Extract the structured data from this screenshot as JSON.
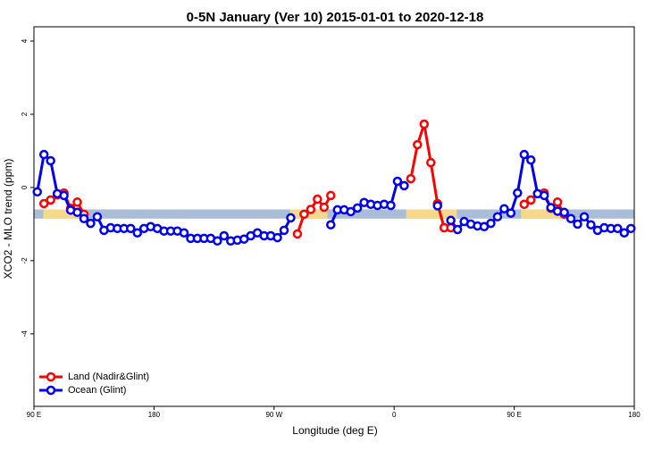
{
  "chart_data": {
    "type": "line",
    "title": "0-5N January (Ver 10)   2015-01-01 to 2020-12-18",
    "x_label": "Longitude (deg E)",
    "y_label": "XCO2 - MLO trend (ppm)",
    "x": [
      92.5,
      97.5,
      102.5,
      107.5,
      112.5,
      117.5,
      122.5,
      127.5,
      132.5,
      137.5,
      142.5,
      147.5,
      152.5,
      157.5,
      162.5,
      167.5,
      172.5,
      177.5,
      182.5,
      187.5,
      192.5,
      197.5,
      202.5,
      207.5,
      212.5,
      217.5,
      222.5,
      227.5,
      232.5,
      237.5,
      242.5,
      247.5,
      252.5,
      257.5,
      262.5,
      267.5,
      272.5,
      277.5,
      282.5,
      287.5,
      292.5,
      297.5,
      302.5,
      307.5,
      312.5,
      317.5,
      322.5,
      327.5,
      332.5,
      337.5,
      342.5,
      347.5,
      352.5,
      357.5,
      362.5,
      367.5,
      372.5,
      377.5,
      382.5,
      387.5,
      392.5,
      397.5,
      402.5,
      407.5,
      412.5,
      417.5,
      422.5,
      427.5,
      432.5,
      437.5,
      442.5,
      447.5,
      452.5,
      457.5,
      462.5,
      467.5,
      472.5,
      477.5,
      482.5,
      487.5,
      492.5,
      497.5,
      502.5,
      507.5,
      512.5,
      517.5,
      522.5,
      527.5,
      532.5,
      537.5
    ],
    "series": [
      {
        "name": "Land (Nadir&Glint)",
        "color": "#ff0000",
        "values": [
          null,
          -0.44,
          -0.34,
          -0.2,
          -0.15,
          -0.57,
          -0.4,
          -0.73,
          null,
          null,
          null,
          null,
          null,
          null,
          null,
          null,
          null,
          null,
          null,
          null,
          null,
          null,
          null,
          null,
          null,
          null,
          null,
          null,
          null,
          null,
          null,
          null,
          null,
          null,
          null,
          null,
          null,
          null,
          null,
          -1.27,
          -0.73,
          -0.6,
          -0.32,
          -0.54,
          -0.22,
          null,
          null,
          null,
          null,
          null,
          null,
          null,
          null,
          null,
          null,
          null,
          0.24,
          1.17,
          1.73,
          0.68,
          -0.44,
          -1.1,
          -1.1,
          null,
          null,
          null,
          null,
          null,
          null,
          null,
          null,
          null,
          null,
          -0.46,
          -0.34,
          -0.17,
          -0.15,
          -0.57,
          -0.4,
          -0.73,
          null,
          null,
          null,
          null,
          null,
          null,
          null,
          null,
          null,
          null
        ]
      },
      {
        "name": "Ocean (Glint)",
        "color": "#0000ee",
        "values": [
          -0.12,
          0.9,
          0.73,
          -0.17,
          -0.22,
          -0.62,
          -0.68,
          -0.85,
          -0.98,
          -0.8,
          -1.17,
          -1.1,
          -1.12,
          -1.12,
          -1.12,
          -1.24,
          -1.12,
          -1.07,
          -1.12,
          -1.19,
          -1.19,
          -1.19,
          -1.24,
          -1.39,
          -1.39,
          -1.39,
          -1.39,
          -1.46,
          -1.32,
          -1.46,
          -1.44,
          -1.41,
          -1.32,
          -1.24,
          -1.32,
          -1.32,
          -1.37,
          -1.17,
          -0.83,
          null,
          null,
          null,
          null,
          null,
          -1.02,
          -0.61,
          -0.61,
          -0.66,
          -0.56,
          -0.41,
          -0.46,
          -0.49,
          -0.46,
          -0.49,
          0.17,
          0.05,
          null,
          null,
          null,
          null,
          -0.5,
          null,
          -0.9,
          -1.15,
          -0.93,
          -1.0,
          -1.05,
          -1.07,
          -0.98,
          -0.8,
          -0.58,
          -0.7,
          -0.15,
          0.9,
          0.75,
          -0.17,
          -0.22,
          -0.55,
          -0.65,
          -0.68,
          -0.85,
          -1.0,
          -0.8,
          -1.02,
          -1.17,
          -1.1,
          -1.12,
          -1.12,
          -1.24,
          -1.12
        ]
      }
    ],
    "xlim": [
      90,
      540
    ],
    "ylim": [
      -5.98,
      4.39
    ],
    "xticks": [
      {
        "value": 90,
        "label": "90 E"
      },
      180,
      {
        "value": 270,
        "label": "90 W"
      },
      {
        "value": 360,
        "label": "0"
      },
      {
        "value": 450,
        "label": "90 E"
      },
      {
        "value": 540,
        "label": "180"
      }
    ],
    "yticks": [
      -4,
      -2,
      0,
      2,
      4
    ],
    "band": {
      "range": [
        -0.85,
        -0.6
      ],
      "color": "#a9bcd8",
      "land_color": "#f7d98a",
      "land_ranges": [
        [
          97,
          128
        ],
        [
          282,
          310
        ],
        [
          369,
          407
        ],
        [
          455,
          490
        ]
      ]
    },
    "legend": "bottom-left"
  }
}
